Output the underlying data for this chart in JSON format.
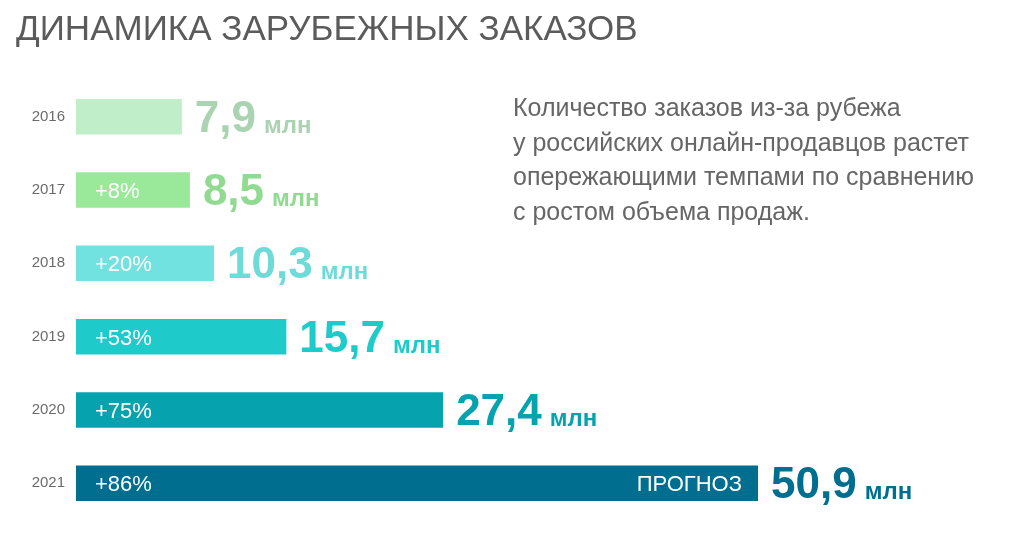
{
  "chart_data": {
    "type": "bar",
    "orientation": "horizontal",
    "title": "ДИНАМИКА ЗАРУБЕЖНЫХ ЗАКАЗОВ",
    "categories": [
      "2016",
      "2017",
      "2018",
      "2019",
      "2020",
      "2021"
    ],
    "values": [
      7.9,
      8.5,
      10.3,
      15.7,
      27.4,
      50.9
    ],
    "colors": [
      "#c0eec8",
      "#9ae89a",
      "#72e2e0",
      "#1ecaca",
      "#06a3ae",
      "#006f8f"
    ],
    "value_labels": [
      "7,9 млн",
      "8,5 млн",
      "10,3 млн",
      "15,7 млн",
      "27,4 млн",
      "50,9 млн"
    ],
    "tick_labels": "y",
    "legend": false,
    "grid": false,
    "annotations": [
      "Количество заказов из-за рубежа\nу российских онлайн-продавцов растет\nопережающими темпами по сравнению\nс ростом объема продаж.",
      "+8%",
      "+20%",
      "+53%",
      "+75%",
      "+86%",
      "ПРОГНОЗ"
    ]
  }
}
